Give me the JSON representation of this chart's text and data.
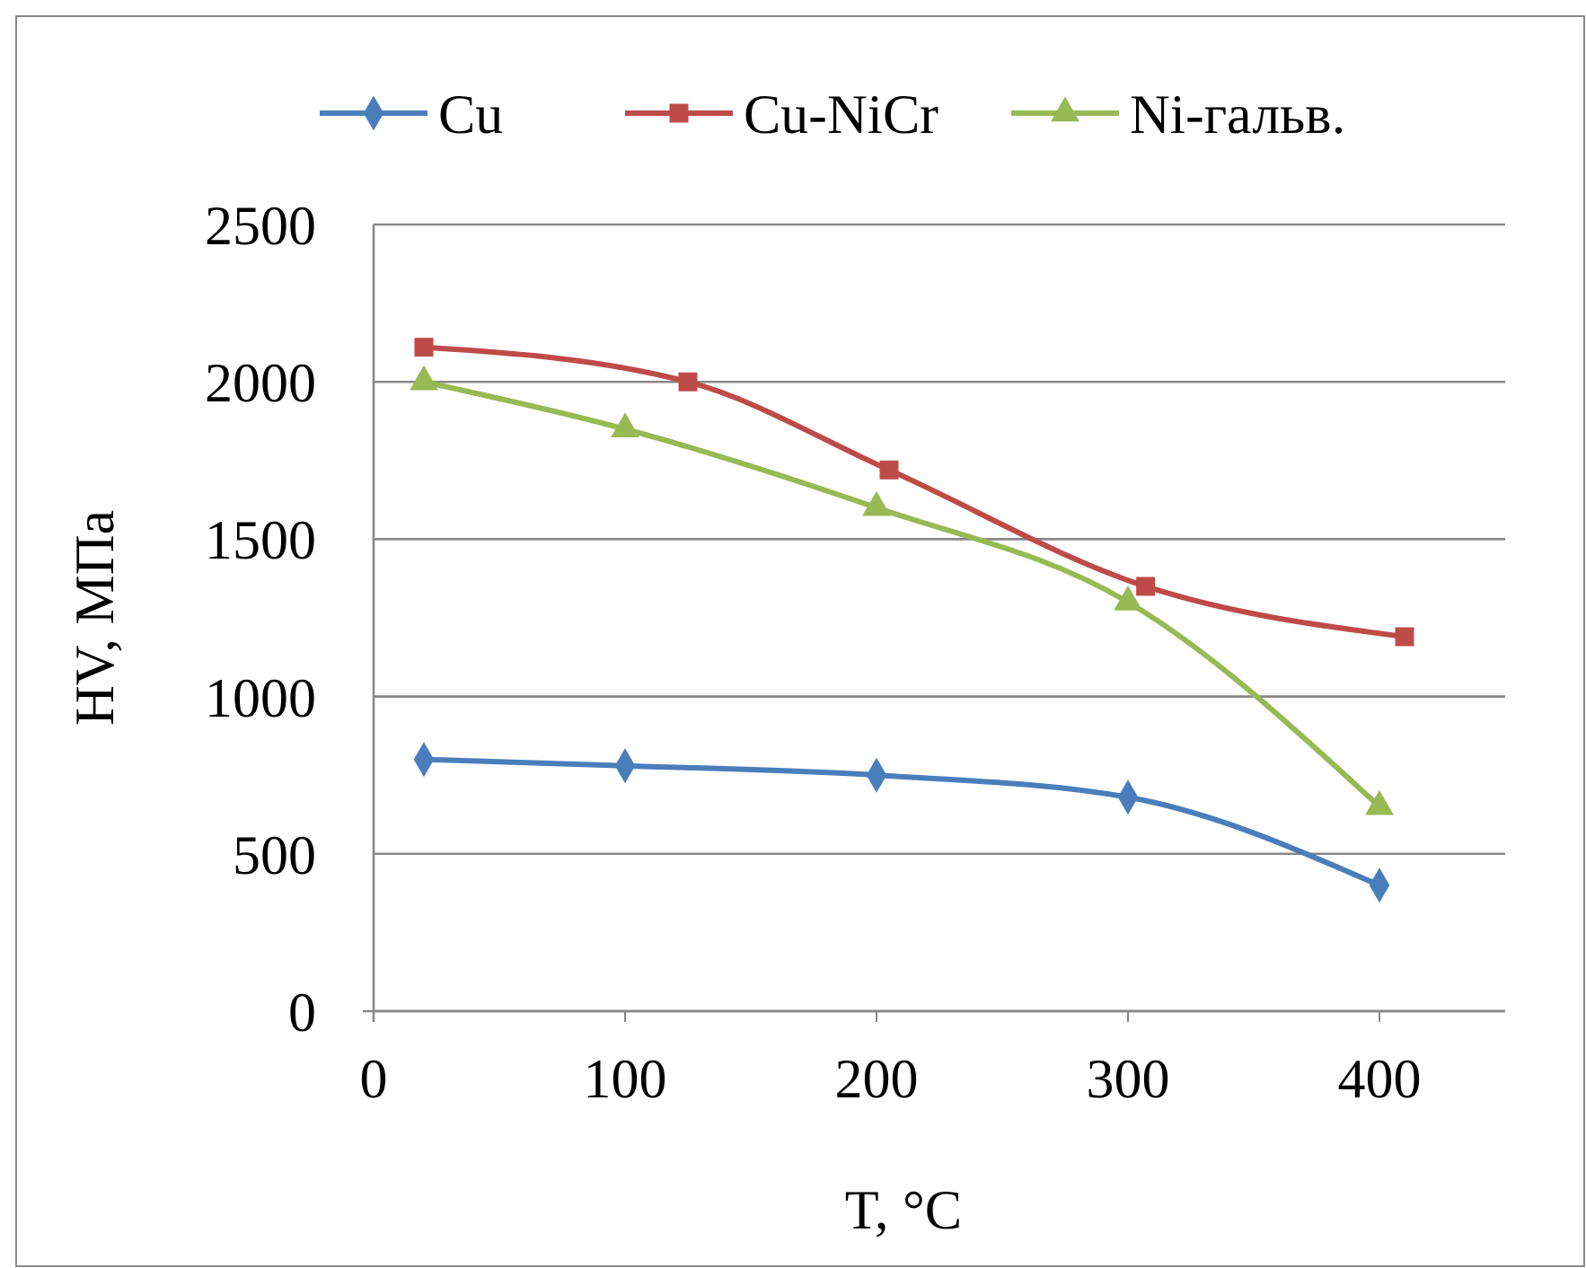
{
  "chart_data": {
    "type": "line",
    "xlabel": "T, °C",
    "ylabel": "HV, МПа",
    "xlim": [
      0,
      450
    ],
    "xticks": [
      0,
      100,
      200,
      300,
      400
    ],
    "ylim": [
      0,
      2500
    ],
    "yticks": [
      0,
      500,
      1000,
      1500,
      2000,
      2500
    ],
    "grid": "y",
    "legend": "top",
    "line_style": "solid",
    "series": [
      {
        "name": "Cu",
        "color": "#4a7ebb",
        "marker": "diamond",
        "x": [
          20,
          100,
          200,
          300,
          400
        ],
        "values": [
          800,
          780,
          750,
          680,
          400
        ]
      },
      {
        "name": "Cu-NiCr",
        "color": "#be4b48",
        "marker": "square",
        "x": [
          20,
          125,
          205,
          307,
          410
        ],
        "values": [
          2110,
          2000,
          1720,
          1350,
          1190
        ]
      },
      {
        "name": "Ni-гальв.",
        "color": "#98b954",
        "marker": "triangle",
        "x": [
          20,
          100,
          200,
          300,
          400
        ],
        "values": [
          2000,
          1850,
          1600,
          1300,
          650
        ]
      }
    ]
  }
}
